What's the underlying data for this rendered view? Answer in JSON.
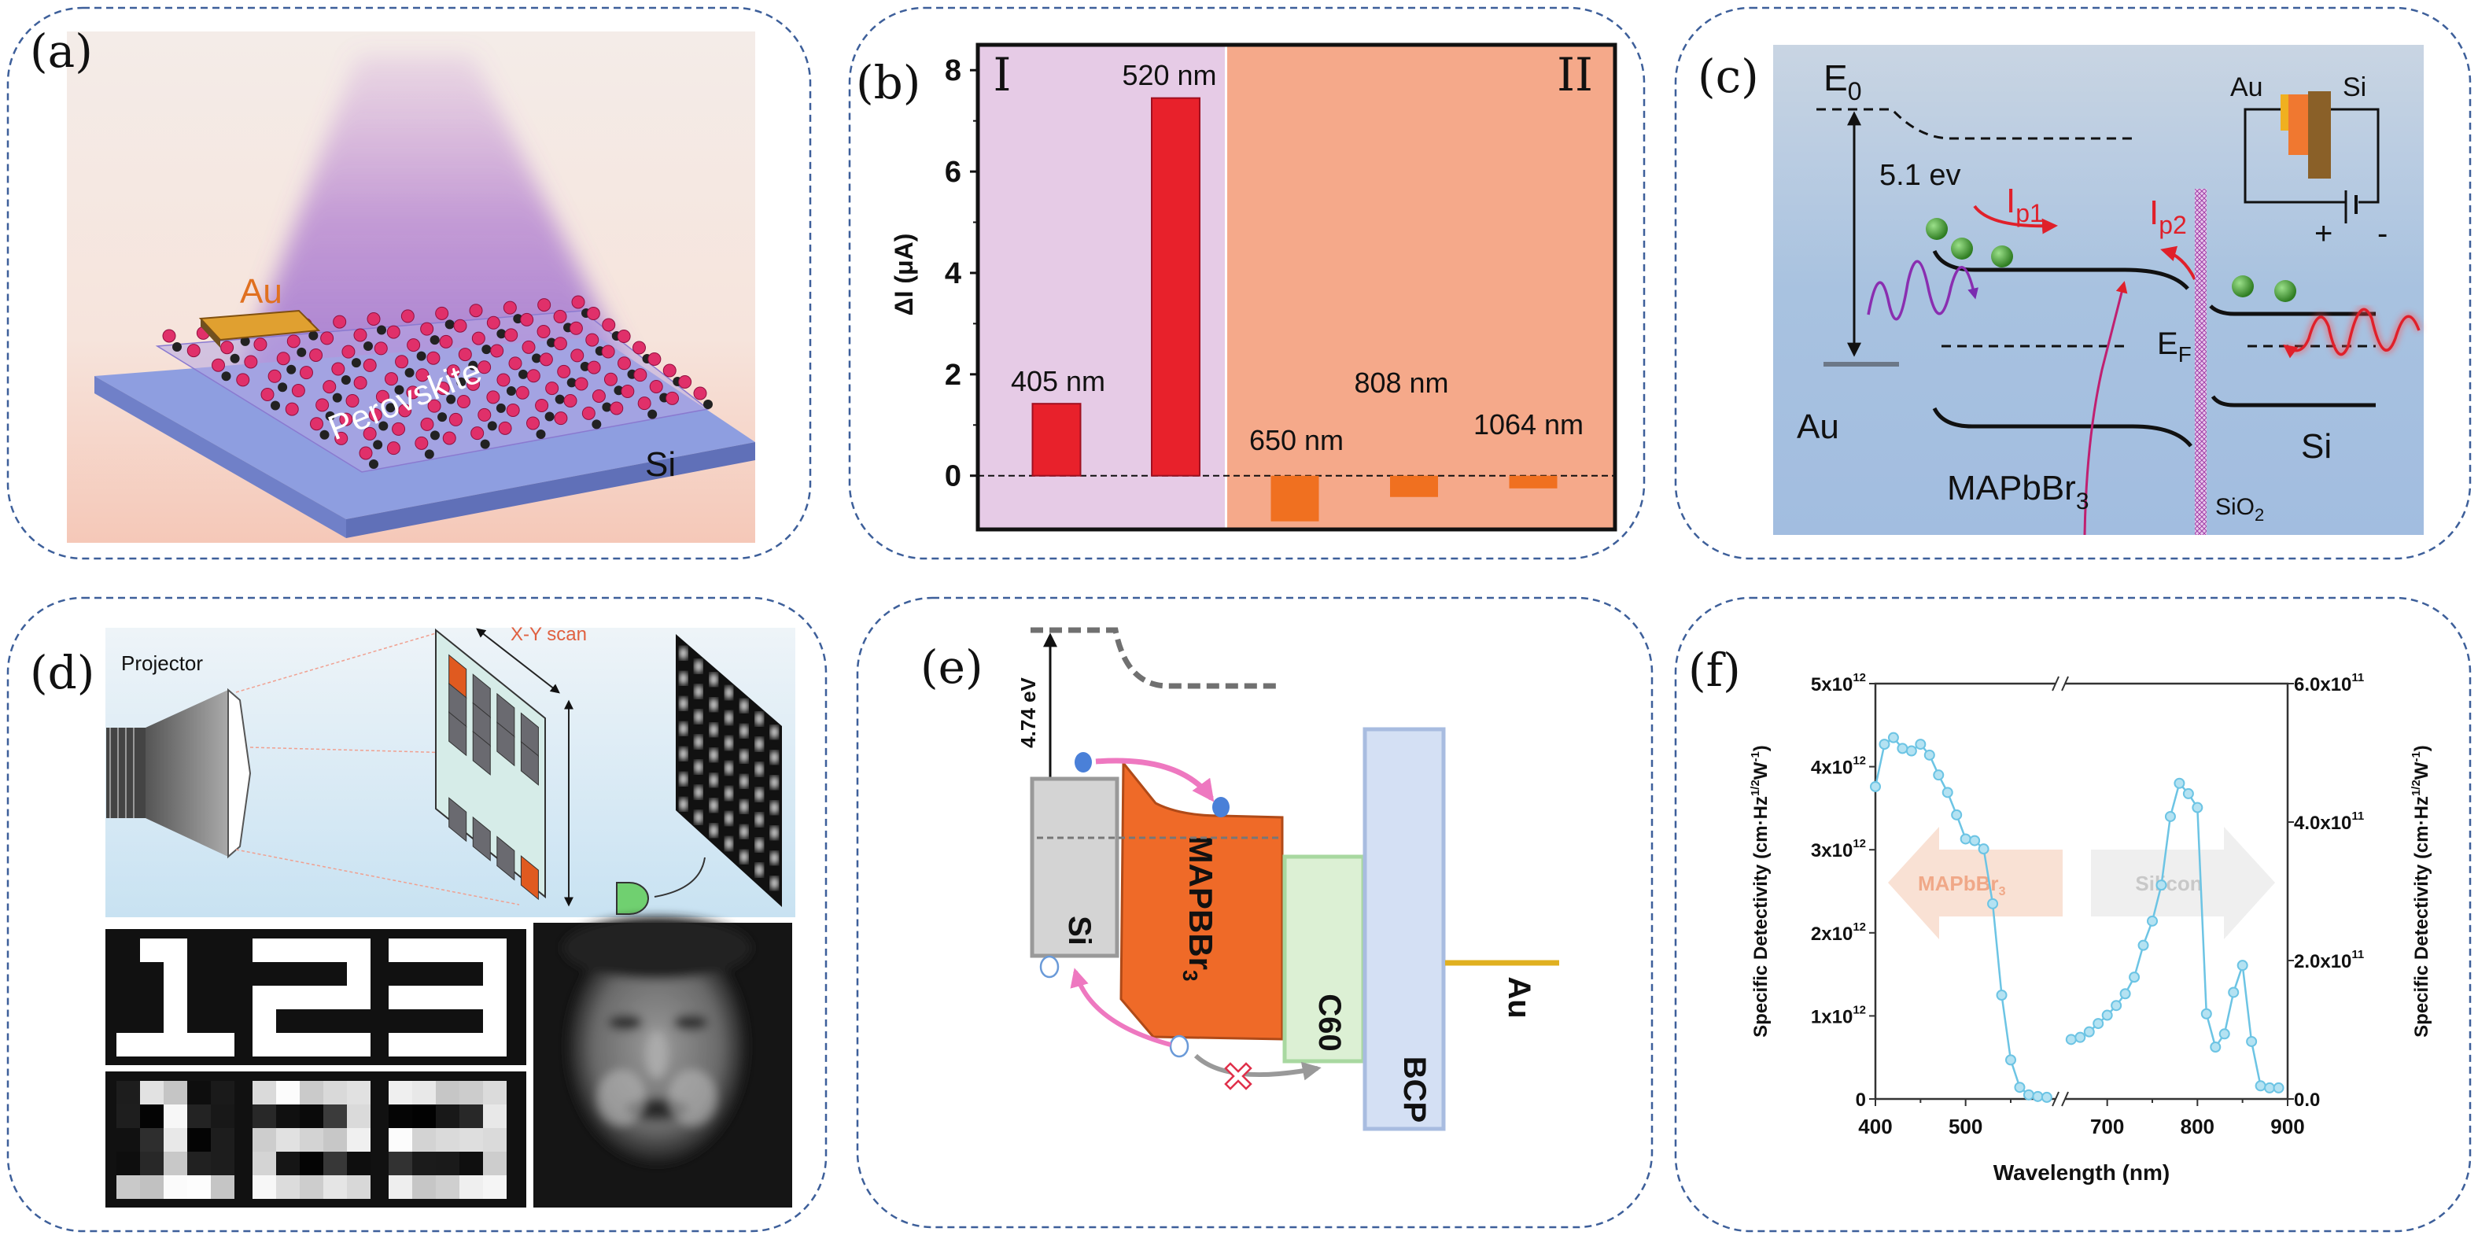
{
  "panel_a": {
    "label": "(a)",
    "au": "Au",
    "perovskite": "Perovskite",
    "si": "Si"
  },
  "panel_b": {
    "label": "(b)"
  },
  "panel_c": {
    "label": "(c)",
    "e0": "E",
    "e0_sub": "0",
    "gap": "5.1 ev",
    "ip1": "I",
    "ip1_sub": "p1",
    "ip2": "I",
    "ip2_sub": "p2",
    "ef": "E",
    "ef_sub": "F",
    "au": "Au",
    "si": "Si",
    "material": "MAPbBr",
    "material_sub": "3",
    "oxide": "SiO",
    "oxide_sub": "2",
    "inset_au": "Au",
    "inset_si": "Si",
    "plus": "+",
    "minus": "-"
  },
  "panel_d": {
    "label": "(d)",
    "projector": "Projector",
    "scan": "X-Y scan",
    "digits": "123"
  },
  "panel_e": {
    "label": "(e)",
    "gap": "4.74 eV",
    "si": "Si",
    "material": "MAPBBr",
    "material_sub": "3",
    "c60": "C60",
    "bcp": "BCP",
    "au": "Au"
  },
  "panel_f": {
    "label": "(f)"
  },
  "colors": {
    "border": "#3d5f9a",
    "red_bar": "#e8212b",
    "orange_bar": "#f07020",
    "region_I": "#e6cbe6",
    "region_II": "#f5a98a",
    "curve": "#6cc4e4"
  },
  "chart_data": [
    {
      "type": "bar",
      "title": "",
      "xlabel": "",
      "ylabel": "ΔI (μA)",
      "ylim": [
        -1.06,
        8.5
      ],
      "yticks": [
        0,
        2,
        4,
        6,
        8
      ],
      "categories": [
        "405 nm",
        "520 nm",
        "650 nm",
        "808 nm",
        "1064 nm"
      ],
      "values": [
        1.42,
        7.45,
        -0.9,
        -0.42,
        -0.25
      ],
      "regions": [
        {
          "label": "I",
          "categories": [
            "405 nm",
            "520 nm"
          ]
        },
        {
          "label": "II",
          "categories": [
            "650 nm",
            "808 nm",
            "1064 nm"
          ]
        }
      ],
      "zero_line": "dashed"
    },
    {
      "type": "line",
      "title": "",
      "xlabel": "Wavelength (nm)",
      "ylabel_parts": [
        "Specific Detectivity (cm·Hz",
        "1/2",
        "W",
        "-1",
        ")"
      ],
      "x_segments": [
        [
          400,
          605
        ],
        [
          648,
          900
        ]
      ],
      "xticks": [
        400,
        500,
        700,
        800,
        900
      ],
      "ylim_left": [
        0,
        5000000000000.0
      ],
      "ylim_right": [
        0,
        600000000000.0
      ],
      "yticks_left": [
        {
          "value": 0,
          "label": "0",
          "sup": ""
        },
        {
          "value": 1000000000000.0,
          "label": "1x10",
          "sup": "12"
        },
        {
          "value": 2000000000000.0,
          "label": "2x10",
          "sup": "12"
        },
        {
          "value": 3000000000000.0,
          "label": "3x10",
          "sup": "12"
        },
        {
          "value": 4000000000000.0,
          "label": "4x10",
          "sup": "12"
        },
        {
          "value": 5000000000000.0,
          "label": "5x10",
          "sup": "12"
        }
      ],
      "yticks_right": [
        {
          "value": 0,
          "label": "0.0",
          "sup": ""
        },
        {
          "value": 200000000000.0,
          "label": "2.0x10",
          "sup": "11"
        },
        {
          "value": 400000000000.0,
          "label": "4.0x10",
          "sup": "11"
        },
        {
          "value": 600000000000.0,
          "label": "6.0x10",
          "sup": "11"
        }
      ],
      "series": [
        {
          "name": "MAPbBr3",
          "axis": "left",
          "x": [
            400,
            410,
            420,
            430,
            440,
            450,
            460,
            470,
            480,
            490,
            500,
            510,
            520,
            530,
            540,
            550,
            560,
            570,
            580,
            590
          ],
          "y": [
            3760000000000.0,
            4270000000000.0,
            4350000000000.0,
            4220000000000.0,
            4190000000000.0,
            4270000000000.0,
            4140000000000.0,
            3900000000000.0,
            3690000000000.0,
            3420000000000.0,
            3130000000000.0,
            3110000000000.0,
            3010000000000.0,
            2350000000000.0,
            1250000000000.0,
            470000000000.0,
            140000000000.0,
            50000000000.0,
            30000000000.0,
            20000000000.0
          ]
        },
        {
          "name": "Silicon",
          "axis": "right",
          "x": [
            660,
            670,
            680,
            690,
            700,
            710,
            720,
            730,
            740,
            750,
            760,
            770,
            780,
            790,
            800,
            810,
            820,
            830,
            840,
            850,
            860,
            870,
            880,
            890
          ],
          "y": [
            86000000000.0,
            89000000000.0,
            97000000000.0,
            109000000000.0,
            121000000000.0,
            135000000000.0,
            152000000000.0,
            176000000000.0,
            222000000000.0,
            257000000000.0,
            309000000000.0,
            408000000000.0,
            456000000000.0,
            441000000000.0,
            421000000000.0,
            123000000000.0,
            75000000000.0,
            94000000000.0,
            154000000000.0,
            193000000000.0,
            83000000000.0,
            19000000000.0,
            16000000000.0,
            16000000000.0
          ]
        }
      ],
      "annotations": [
        {
          "text": "MAPbBr",
          "sub": "3",
          "direction": "left"
        },
        {
          "text": "Silicon",
          "sub": "",
          "direction": "right"
        }
      ]
    }
  ]
}
